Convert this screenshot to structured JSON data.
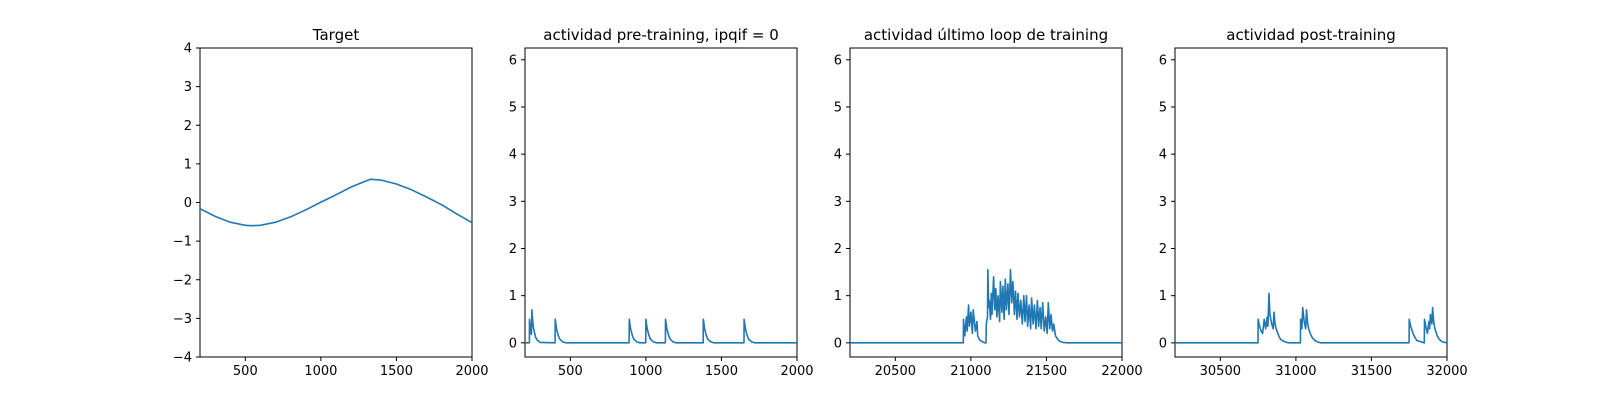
{
  "series_color": "#1f77b4",
  "chart_data": [
    {
      "type": "line",
      "title": "Target",
      "xlabel": "",
      "ylabel": "",
      "xlim": [
        200,
        2000
      ],
      "ylim": [
        -4,
        4
      ],
      "xticks": [
        500,
        1000,
        1500,
        2000
      ],
      "yticks": [
        -4,
        -3,
        -2,
        -1,
        0,
        1,
        2,
        3,
        4
      ],
      "ytick_labels": [
        "−4",
        "−3",
        "−2",
        "−1",
        "0",
        "1",
        "2",
        "3",
        "4"
      ],
      "grid": false,
      "series": [
        {
          "x": [
            200,
            300,
            400,
            500,
            540,
            600,
            700,
            800,
            900,
            1000,
            1100,
            1200,
            1300,
            1330,
            1400,
            1500,
            1600,
            1700,
            1800,
            1900,
            2000
          ],
          "y": [
            -0.16,
            -0.36,
            -0.51,
            -0.59,
            -0.6,
            -0.59,
            -0.51,
            -0.37,
            -0.19,
            0.01,
            0.2,
            0.4,
            0.56,
            0.6,
            0.58,
            0.48,
            0.33,
            0.14,
            -0.06,
            -0.3,
            -0.52
          ]
        }
      ]
    },
    {
      "type": "line",
      "title": "actividad pre-training, ipqif = 0",
      "xlabel": "",
      "ylabel": "",
      "xlim": [
        200,
        2000
      ],
      "ylim": [
        -0.3,
        6.25
      ],
      "xticks": [
        500,
        1000,
        1500,
        2000
      ],
      "yticks": [
        0,
        1,
        2,
        3,
        4,
        5,
        6
      ],
      "grid": false,
      "series": [
        {
          "x": [
            200,
            229,
            230,
            236,
            242,
            244,
            245,
            250,
            255,
            260,
            270,
            280,
            300,
            399,
            400,
            405,
            410,
            420,
            430,
            450,
            470,
            889,
            890,
            895,
            900,
            910,
            920,
            940,
            960,
            999,
            1000,
            1005,
            1010,
            1020,
            1030,
            1050,
            1070,
            1129,
            1130,
            1135,
            1140,
            1150,
            1160,
            1180,
            1200,
            1379,
            1380,
            1385,
            1390,
            1400,
            1410,
            1430,
            1450,
            1649,
            1650,
            1655,
            1660,
            1670,
            1680,
            1700,
            1720,
            2000
          ],
          "y": [
            0,
            0,
            0.5,
            0.32,
            0.18,
            0.3,
            0.7,
            0.5,
            0.35,
            0.25,
            0.12,
            0.06,
            0.01,
            0,
            0.5,
            0.38,
            0.28,
            0.16,
            0.08,
            0.02,
            0,
            0,
            0.5,
            0.38,
            0.28,
            0.16,
            0.08,
            0.02,
            0,
            0,
            0.5,
            0.38,
            0.28,
            0.16,
            0.08,
            0.02,
            0,
            0,
            0.5,
            0.38,
            0.28,
            0.16,
            0.08,
            0.02,
            0,
            0,
            0.5,
            0.38,
            0.28,
            0.16,
            0.08,
            0.02,
            0,
            0,
            0.5,
            0.38,
            0.28,
            0.16,
            0.08,
            0.02,
            0,
            0
          ]
        }
      ]
    },
    {
      "type": "line",
      "title": "actividad último loop de training",
      "xlabel": "",
      "ylabel": "",
      "xlim": [
        20200,
        22000
      ],
      "ylim": [
        -0.3,
        6.25
      ],
      "xticks": [
        20500,
        21000,
        21500,
        22000
      ],
      "yticks": [
        0,
        1,
        2,
        3,
        4,
        5,
        6
      ],
      "grid": false,
      "series": [
        {
          "x": [
            20200,
            20950,
            20951,
            20960,
            20970,
            20975,
            20985,
            20990,
            21000,
            21010,
            21015,
            21030,
            21040,
            21045,
            21060,
            21080,
            21090,
            21100,
            21102,
            21110,
            21112,
            21118,
            21122,
            21130,
            21135,
            21140,
            21150,
            21158,
            21165,
            21172,
            21180,
            21190,
            21195,
            21205,
            21212,
            21220,
            21228,
            21235,
            21245,
            21252,
            21262,
            21270,
            21278,
            21288,
            21295,
            21305,
            21312,
            21322,
            21330,
            21340,
            21350,
            21358,
            21368,
            21375,
            21385,
            21395,
            21402,
            21412,
            21420,
            21430,
            21440,
            21448,
            21458,
            21465,
            21475,
            21485,
            21495,
            21505,
            21512,
            21522,
            21530,
            21540,
            21548,
            21560,
            21575,
            21590,
            21610,
            21640,
            22000
          ],
          "y": [
            0,
            0,
            0.5,
            0.15,
            0.55,
            0.25,
            0.8,
            0.35,
            0.65,
            0.2,
            0.7,
            0.25,
            0.45,
            0.15,
            0.05,
            0.02,
            0,
            0,
            0.4,
            0.55,
            1.55,
            0.75,
            0.9,
            0.5,
            1.05,
            0.6,
            1.4,
            0.7,
            1.15,
            0.55,
            1.0,
            0.45,
            1.3,
            0.65,
            1.2,
            0.5,
            1.35,
            0.7,
            1.25,
            0.6,
            1.55,
            0.85,
            1.3,
            0.6,
            1.1,
            0.5,
            1.05,
            0.55,
            0.9,
            0.4,
            1.0,
            0.45,
            1.0,
            0.35,
            0.8,
            0.3,
            0.95,
            0.4,
            0.8,
            0.3,
            0.9,
            0.35,
            0.75,
            0.3,
            0.85,
            0.25,
            0.55,
            0.2,
            0.85,
            0.3,
            0.6,
            0.25,
            0.4,
            0.15,
            0.07,
            0.03,
            0.01,
            0,
            0
          ]
        }
      ]
    },
    {
      "type": "line",
      "title": "actividad post-training",
      "xlabel": "",
      "ylabel": "",
      "xlim": [
        30200,
        32000
      ],
      "ylim": [
        -0.3,
        6.25
      ],
      "xticks": [
        30500,
        31000,
        31500,
        32000
      ],
      "yticks": [
        0,
        1,
        2,
        3,
        4,
        5,
        6
      ],
      "grid": false,
      "series": [
        {
          "x": [
            30200,
            30749,
            30750,
            30760,
            30770,
            30780,
            30790,
            30800,
            30810,
            30815,
            30822,
            30828,
            30840,
            30850,
            30855,
            30862,
            30870,
            30880,
            30890,
            30900,
            30920,
            30940,
            30960,
            31030,
            31031,
            31040,
            31045,
            31055,
            31065,
            31070,
            31078,
            31085,
            31095,
            31110,
            31130,
            31160,
            31749,
            31750,
            31760,
            31770,
            31780,
            31800,
            31850,
            31851,
            31860,
            31870,
            31880,
            31885,
            31890,
            31900,
            31905,
            31912,
            31920,
            31935,
            31950,
            31970,
            32000
          ],
          "y": [
            0,
            0,
            0.5,
            0.35,
            0.25,
            0.2,
            0.5,
            0.3,
            0.55,
            0.35,
            1.05,
            0.6,
            0.4,
            0.3,
            0.65,
            0.4,
            0.3,
            0.2,
            0.12,
            0.07,
            0.03,
            0.01,
            0,
            0,
            0.5,
            0.3,
            0.75,
            0.45,
            0.3,
            0.7,
            0.4,
            0.3,
            0.2,
            0.1,
            0.04,
            0,
            0,
            0.5,
            0.35,
            0.25,
            0.16,
            0.05,
            0,
            0.5,
            0.35,
            0.2,
            0.45,
            0.3,
            0.6,
            0.4,
            0.75,
            0.45,
            0.3,
            0.15,
            0.07,
            0.02,
            0
          ]
        }
      ]
    }
  ]
}
